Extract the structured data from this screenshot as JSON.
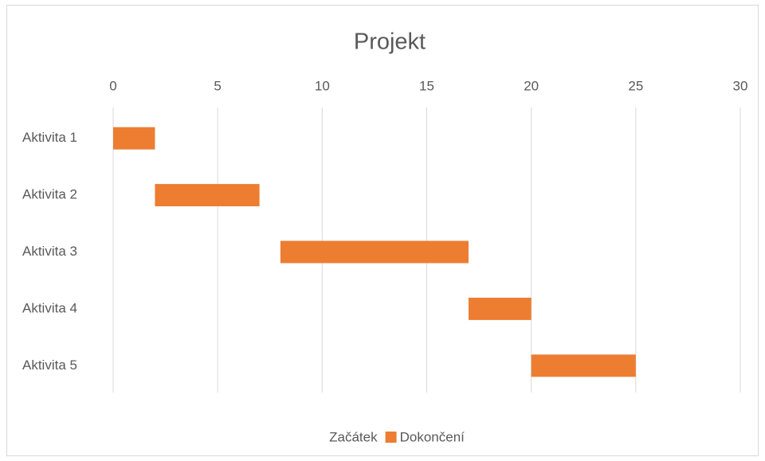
{
  "chart_data": {
    "type": "bar",
    "orientation": "horizontal",
    "stacked": true,
    "title": "Projekt",
    "categories": [
      "Aktivita 1",
      "Aktivita 2",
      "Aktivita 3",
      "Aktivita 4",
      "Aktivita 5"
    ],
    "series": [
      {
        "name": "Začátek",
        "color": "none",
        "values": [
          0,
          2,
          8,
          17,
          20
        ]
      },
      {
        "name": "Dokončení",
        "color": "#ed7d31",
        "values": [
          2,
          5,
          9,
          3,
          5
        ]
      }
    ],
    "xlim": [
      0,
      30
    ],
    "xticks": [
      0,
      5,
      10,
      15,
      20,
      25,
      30
    ],
    "grid": true,
    "legend": "bottom"
  }
}
